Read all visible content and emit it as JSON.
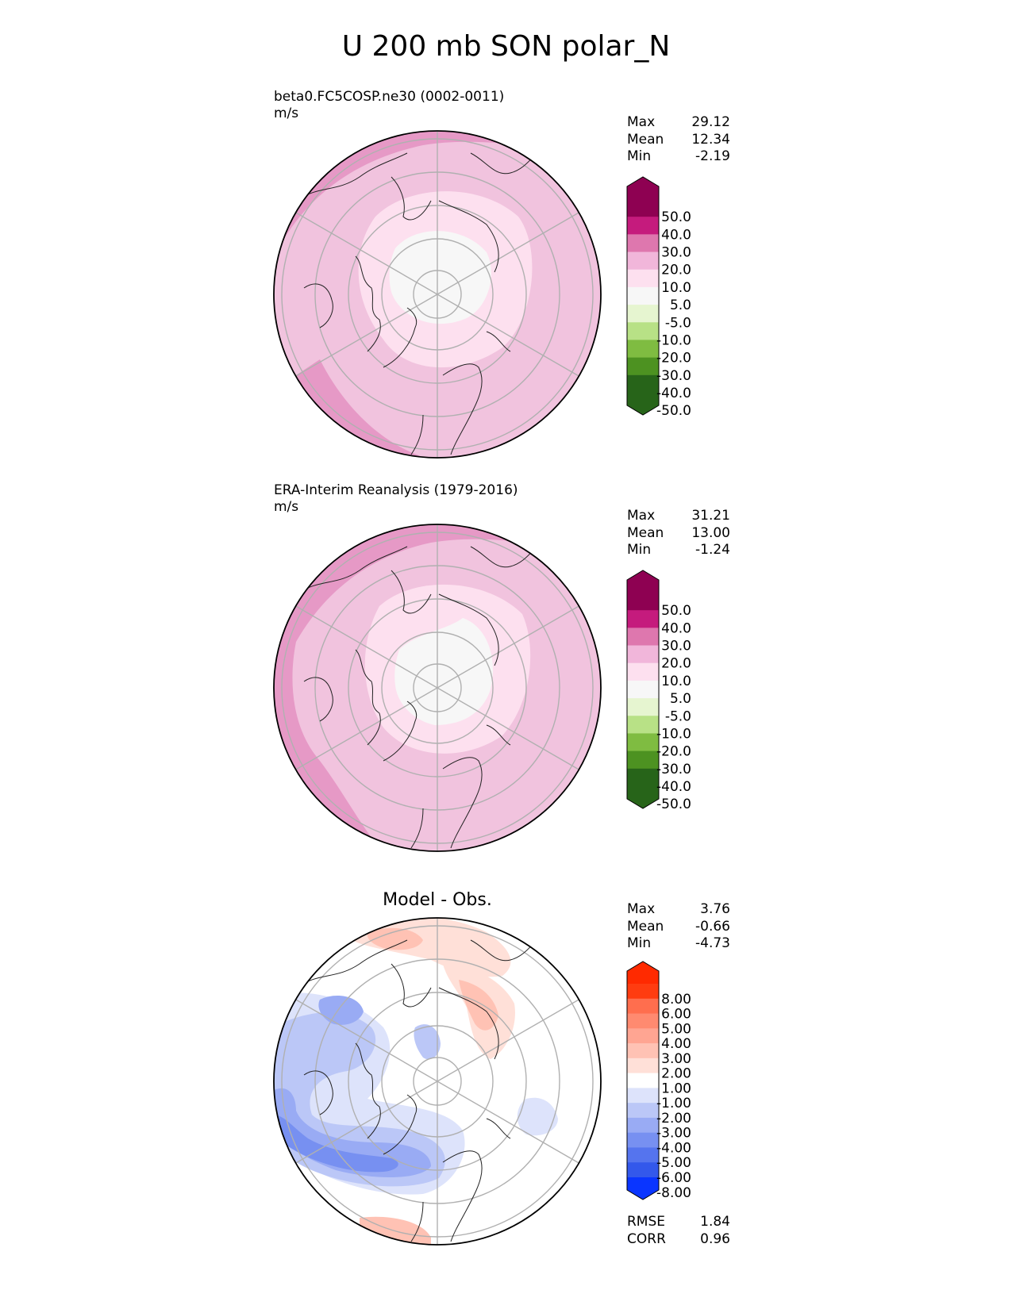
{
  "figure": {
    "title": "U 200 mb SON polar_N"
  },
  "chart_data": [
    {
      "type": "heatmap",
      "projection": "north-polar-stereographic",
      "name": "test",
      "title": "beta0.FC5COSP.ne30 (0002-0011)",
      "units": "m/s",
      "stats": {
        "max_label": "Max",
        "max": "29.12",
        "mean_label": "Mean",
        "mean": "12.34",
        "min_label": "Min",
        "min": "-2.19"
      },
      "levels": [
        "50.0",
        "40.0",
        "30.0",
        "20.0",
        "10.0",
        "5.0",
        "-5.0",
        "-10.0",
        "-20.0",
        "-30.0",
        "-40.0",
        "-50.0"
      ],
      "colors": [
        "#8e0152",
        "#c51b7d",
        "#de77ae",
        "#f1b6da",
        "#fde0ef",
        "#f7f7f7",
        "#e6f5d0",
        "#b8e186",
        "#7fbc41",
        "#4d9221",
        "#276419"
      ],
      "extend_top": "#8e0152",
      "extend_bottom": "#276419"
    },
    {
      "type": "heatmap",
      "projection": "north-polar-stereographic",
      "name": "reference",
      "title": "ERA-Interim Reanalysis (1979-2016)",
      "units": "m/s",
      "stats": {
        "max_label": "Max",
        "max": "31.21",
        "mean_label": "Mean",
        "mean": "13.00",
        "min_label": "Min",
        "min": "-1.24"
      },
      "levels": [
        "50.0",
        "40.0",
        "30.0",
        "20.0",
        "10.0",
        "5.0",
        "-5.0",
        "-10.0",
        "-20.0",
        "-30.0",
        "-40.0",
        "-50.0"
      ],
      "colors": [
        "#8e0152",
        "#c51b7d",
        "#de77ae",
        "#f1b6da",
        "#fde0ef",
        "#f7f7f7",
        "#e6f5d0",
        "#b8e186",
        "#7fbc41",
        "#4d9221",
        "#276419"
      ],
      "extend_top": "#8e0152",
      "extend_bottom": "#276419"
    },
    {
      "type": "heatmap",
      "projection": "north-polar-stereographic",
      "name": "difference",
      "title": "Model - Obs.",
      "units": "",
      "stats": {
        "max_label": "Max",
        "max": "3.76",
        "mean_label": "Mean",
        "mean": "-0.66",
        "min_label": "Min",
        "min": "-4.73"
      },
      "extra_stats": {
        "rmse_label": "RMSE",
        "rmse": "1.84",
        "corr_label": "CORR",
        "corr": "0.96"
      },
      "levels": [
        "8.00",
        "6.00",
        "5.00",
        "4.00",
        "3.00",
        "2.00",
        "1.00",
        "-1.00",
        "-2.00",
        "-3.00",
        "-4.00",
        "-5.00",
        "-6.00",
        "-8.00"
      ],
      "colors": [
        "#ff3c10",
        "#ff6e4e",
        "#ff8a70",
        "#ffa592",
        "#ffc2b4",
        "#ffe0d8",
        "#ffffff",
        "#dde3fb",
        "#bbc7f7",
        "#99abf4",
        "#7790f1",
        "#5574ee",
        "#3358eb"
      ],
      "extend_top": "#ff2a00",
      "extend_bottom": "#0a35ff"
    }
  ]
}
